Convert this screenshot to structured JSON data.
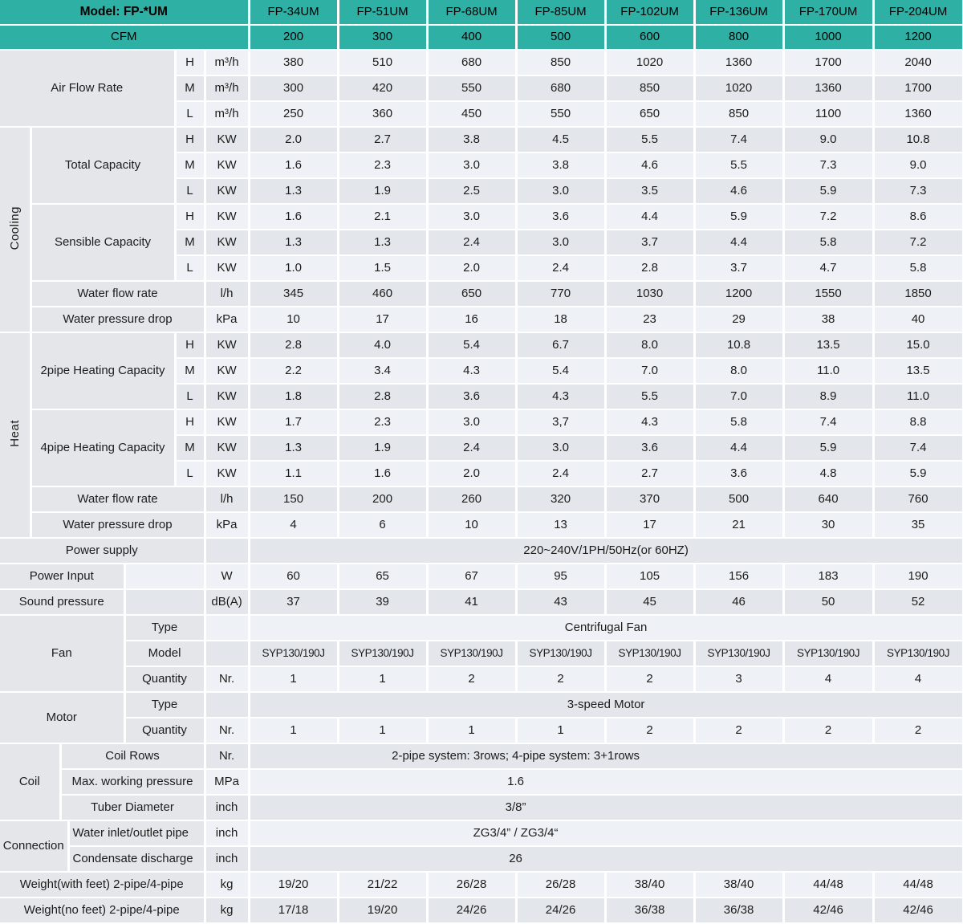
{
  "colors": {
    "header_teal": "#2FB0A5",
    "row_light": "#EEF1F5",
    "row_dark": "#E3E7EC",
    "label_gray": "#E4E6E9",
    "grid_white": "#FFFFFF"
  },
  "table": {
    "speeds": [
      "H",
      "M",
      "L"
    ],
    "header": {
      "model_label": "Model: FP-*UM",
      "cfm_label": "CFM",
      "models": [
        "FP-34UM",
        "FP-51UM",
        "FP-68UM",
        "FP-85UM",
        "FP-102UM",
        "FP-136UM",
        "FP-170UM",
        "FP-204UM"
      ],
      "cfm": [
        "200",
        "300",
        "400",
        "500",
        "600",
        "800",
        "1000",
        "1200"
      ]
    },
    "air_flow": {
      "label": "Air Flow Rate",
      "unit": "m³/h",
      "H": [
        "380",
        "510",
        "680",
        "850",
        "1020",
        "1360",
        "1700",
        "2040"
      ],
      "M": [
        "300",
        "420",
        "550",
        "680",
        "850",
        "1020",
        "1360",
        "1700"
      ],
      "L": [
        "250",
        "360",
        "450",
        "550",
        "650",
        "850",
        "1100",
        "1360"
      ]
    },
    "cooling": {
      "label": "Cooling",
      "total_capacity": {
        "label": "Total Capacity",
        "unit": "KW",
        "H": [
          "2.0",
          "2.7",
          "3.8",
          "4.5",
          "5.5",
          "7.4",
          "9.0",
          "10.8"
        ],
        "M": [
          "1.6",
          "2.3",
          "3.0",
          "3.8",
          "4.6",
          "5.5",
          "7.3",
          "9.0"
        ],
        "L": [
          "1.3",
          "1.9",
          "2.5",
          "3.0",
          "3.5",
          "4.6",
          "5.9",
          "7.3"
        ]
      },
      "sensible_capacity": {
        "label": "Sensible Capacity",
        "unit": "KW",
        "H": [
          "1.6",
          "2.1",
          "3.0",
          "3.6",
          "4.4",
          "5.9",
          "7.2",
          "8.6"
        ],
        "M": [
          "1.3",
          "1.3",
          "2.4",
          "3.0",
          "3.7",
          "4.4",
          "5.8",
          "7.2"
        ],
        "L": [
          "1.0",
          "1.5",
          "2.0",
          "2.4",
          "2.8",
          "3.7",
          "4.7",
          "5.8"
        ]
      },
      "water_flow_rate": {
        "label": "Water flow rate",
        "unit": "l/h",
        "values": [
          "345",
          "460",
          "650",
          "770",
          "1030",
          "1200",
          "1550",
          "1850"
        ]
      },
      "water_pressure_drop": {
        "label": "Water pressure drop",
        "unit": "kPa",
        "values": [
          "10",
          "17",
          "16",
          "18",
          "23",
          "29",
          "38",
          "40"
        ]
      }
    },
    "heat": {
      "label": "Heat",
      "heating_2pipe": {
        "label": "2pipe Heating Capacity",
        "unit": "KW",
        "H": [
          "2.8",
          "4.0",
          "5.4",
          "6.7",
          "8.0",
          "10.8",
          "13.5",
          "15.0"
        ],
        "M": [
          "2.2",
          "3.4",
          "4.3",
          "5.4",
          "7.0",
          "8.0",
          "11.0",
          "13.5"
        ],
        "L": [
          "1.8",
          "2.8",
          "3.6",
          "4.3",
          "5.5",
          "7.0",
          "8.9",
          "11.0"
        ]
      },
      "heating_4pipe": {
        "label": "4pipe Heating Capacity",
        "unit": "KW",
        "H": [
          "1.7",
          "2.3",
          "3.0",
          "3,7",
          "4.3",
          "5.8",
          "7.4",
          "8.8"
        ],
        "M": [
          "1.3",
          "1.9",
          "2.4",
          "3.0",
          "3.6",
          "4.4",
          "5.9",
          "7.4"
        ],
        "L": [
          "1.1",
          "1.6",
          "2.0",
          "2.4",
          "2.7",
          "3.6",
          "4.8",
          "5.9"
        ]
      },
      "water_flow_rate": {
        "label": "Water flow rate",
        "unit": "l/h",
        "values": [
          "150",
          "200",
          "260",
          "320",
          "370",
          "500",
          "640",
          "760"
        ]
      },
      "water_pressure_drop": {
        "label": "Water pressure drop",
        "unit": "kPa",
        "values": [
          "4",
          "6",
          "10",
          "13",
          "17",
          "21",
          "30",
          "35"
        ]
      }
    },
    "power_supply": {
      "label": "Power supply",
      "value": "220~240V/1PH/50Hz(or 60HZ)"
    },
    "power_input": {
      "label": "Power Input",
      "unit": "W",
      "values": [
        "60",
        "65",
        "67",
        "95",
        "105",
        "156",
        "183",
        "190"
      ]
    },
    "sound_pressure": {
      "label": "Sound pressure",
      "unit": "dB(A)",
      "values": [
        "37",
        "39",
        "41",
        "43",
        "45",
        "46",
        "50",
        "52"
      ]
    },
    "fan": {
      "label": "Fan",
      "type_label": "Type",
      "type_value": "Centrifugal Fan",
      "model_label": "Model",
      "model_values": [
        "SYP130/190J",
        "SYP130/190J",
        "SYP130/190J",
        "SYP130/190J",
        "SYP130/190J",
        "SYP130/190J",
        "SYP130/190J",
        "SYP130/190J"
      ],
      "quantity_label": "Quantity",
      "quantity_unit": "Nr.",
      "quantity_values": [
        "1",
        "1",
        "2",
        "2",
        "2",
        "3",
        "4",
        "4"
      ]
    },
    "motor": {
      "label": "Motor",
      "type_label": "Type",
      "type_value": "3-speed Motor",
      "quantity_label": "Quantity",
      "quantity_unit": "Nr.",
      "quantity_values": [
        "1",
        "1",
        "1",
        "1",
        "2",
        "2",
        "2",
        "2"
      ]
    },
    "coil": {
      "label": "Coil",
      "rows": {
        "label": "Coil Rows",
        "unit": "Nr.",
        "value": "2-pipe system: 3rows; 4-pipe system: 3+1rows"
      },
      "max_pressure": {
        "label": "Max. working pressure",
        "unit": "MPa",
        "value": "1.6"
      },
      "tube_diameter": {
        "label": "Tuber Diameter",
        "unit": "inch",
        "value": "3/8”"
      }
    },
    "connection": {
      "label": "Connection",
      "inlet_outlet": {
        "label": "Water inlet/outlet pipe",
        "unit": "inch",
        "value": "ZG3/4” / ZG3/4“"
      },
      "condensate": {
        "label": "Condensate discharge",
        "unit": "inch",
        "value": "26"
      }
    },
    "weight_with_feet": {
      "label": "Weight(with feet) 2-pipe/4-pipe",
      "unit": "kg",
      "values": [
        "19/20",
        "21/22",
        "26/28",
        "26/28",
        "38/40",
        "38/40",
        "44/48",
        "44/48"
      ]
    },
    "weight_no_feet": {
      "label": "Weight(no feet) 2-pipe/4-pipe",
      "unit": "kg",
      "values": [
        "17/18",
        "19/20",
        "24/26",
        "24/26",
        "36/38",
        "36/38",
        "42/46",
        "42/46"
      ]
    }
  }
}
